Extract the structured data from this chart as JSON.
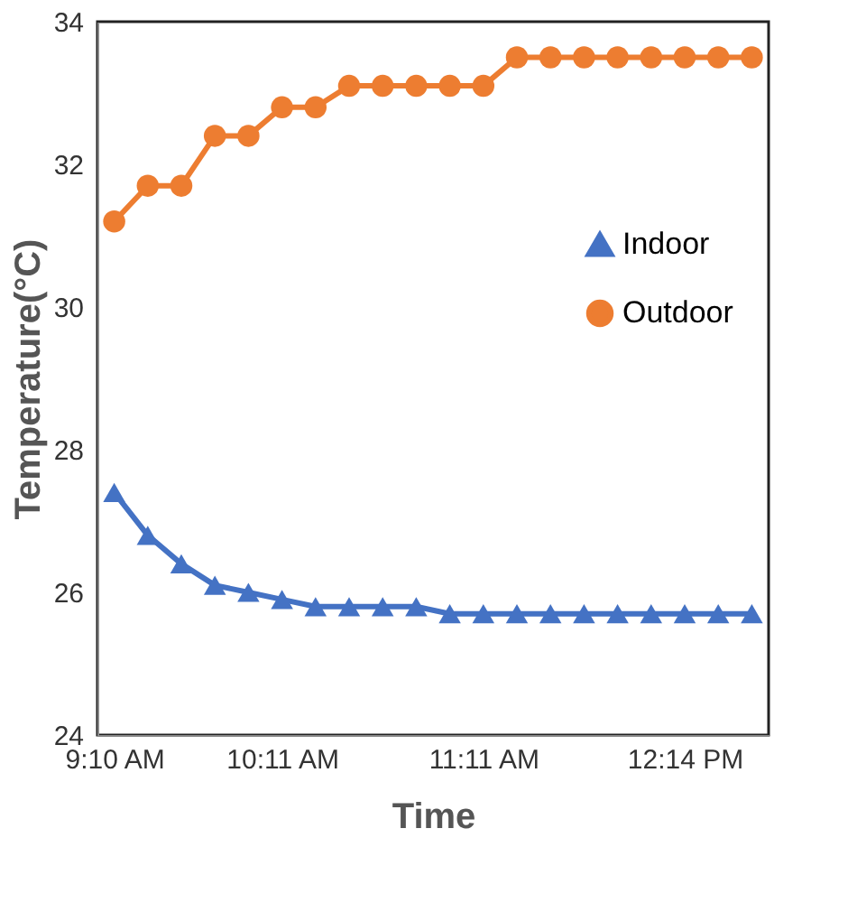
{
  "chart_data": {
    "type": "line",
    "xlabel": "Time",
    "ylabel": "Temperature(°C)",
    "categories": [
      "9:10 AM",
      null,
      null,
      null,
      null,
      "10:11 AM",
      null,
      null,
      null,
      null,
      null,
      "11:11 AM",
      null,
      null,
      null,
      null,
      null,
      "12:14 PM",
      null,
      null
    ],
    "series": [
      {
        "name": "Indoor",
        "color": "#4472c4",
        "marker": "triangle",
        "values": [
          27.4,
          26.8,
          26.4,
          26.1,
          26.0,
          25.9,
          25.8,
          25.8,
          25.8,
          25.8,
          25.7,
          25.7,
          25.7,
          25.7,
          25.7,
          25.7,
          25.7,
          25.7,
          25.7,
          25.7
        ]
      },
      {
        "name": "Outdoor",
        "color": "#ed7d31",
        "marker": "circle",
        "values": [
          31.2,
          31.7,
          31.7,
          32.4,
          32.4,
          32.8,
          32.8,
          33.1,
          33.1,
          33.1,
          33.1,
          33.1,
          33.5,
          33.5,
          33.5,
          33.5,
          33.5,
          33.5,
          33.5,
          33.5
        ]
      }
    ],
    "ylim": [
      24,
      34
    ],
    "yticks": [
      24,
      26,
      28,
      30,
      32,
      34
    ],
    "grid": false,
    "legend": "right",
    "line_style": "solid"
  }
}
